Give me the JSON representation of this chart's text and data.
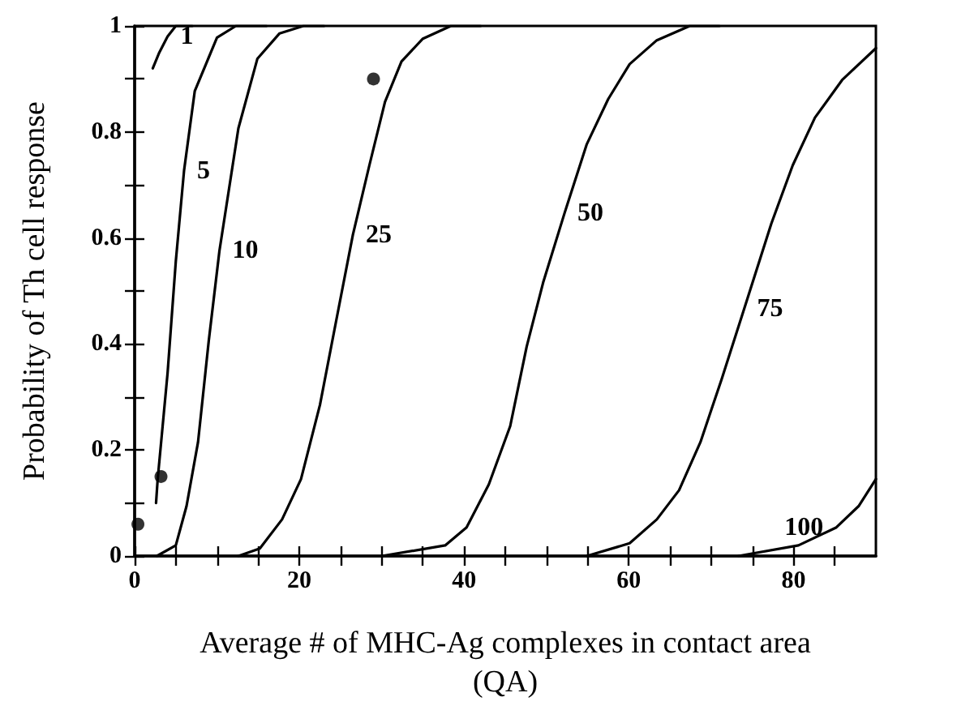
{
  "chart_data": {
    "type": "line",
    "xlabel": "Average # of MHC-Ag complexes in contact area\n(QA)",
    "ylabel": "Probability of Th cell response",
    "xlim": [
      0,
      90
    ],
    "xticks": [
      0,
      {
        "value": 5,
        "label": null
      },
      {
        "value": 10,
        "label": null
      },
      {
        "value": 15,
        "label": null
      },
      20,
      {
        "value": 25,
        "label": null
      },
      {
        "value": 30,
        "label": null
      },
      {
        "value": 35,
        "label": null
      },
      40,
      {
        "value": 45,
        "label": null
      },
      {
        "value": 50,
        "label": null
      },
      {
        "value": 55,
        "label": null
      },
      60,
      {
        "value": 65,
        "label": null
      },
      {
        "value": 70,
        "label": null
      },
      {
        "value": 75,
        "label": null
      },
      80,
      {
        "value": 85,
        "label": null
      }
    ],
    "ylim": [
      0,
      1
    ],
    "yticks": [
      0,
      {
        "value": 0.1,
        "label": null
      },
      0.2,
      {
        "value": 0.3,
        "label": null
      },
      0.4,
      {
        "value": 0.5,
        "label": null
      },
      0.6,
      {
        "value": 0.7,
        "label": null
      },
      0.8,
      {
        "value": 0.9,
        "label": null
      },
      1
    ],
    "grid": false,
    "marker": "none",
    "line_style": "solid",
    "series": [
      {
        "name": "1",
        "color": "#000000",
        "x": [
          2.2,
          3,
          4,
          5,
          7
        ],
        "values": [
          0.92,
          0.95,
          0.98,
          1,
          1
        ]
      },
      {
        "name": "5",
        "color": "#000000",
        "x": [
          2.6,
          2.8,
          4.0,
          5.0,
          6.0,
          7.3,
          10,
          12.3,
          16
        ],
        "values": [
          0.1,
          0.145,
          0.345,
          0.556,
          0.727,
          0.877,
          0.978,
          1,
          1
        ]
      },
      {
        "name": "10",
        "color": "#000000",
        "x": [
          2.7,
          5,
          6.3,
          7.7,
          9,
          10.3,
          12.6,
          14.9,
          17.6,
          20.5,
          23
        ],
        "values": [
          0,
          0.02,
          0.094,
          0.215,
          0.406,
          0.576,
          0.807,
          0.938,
          0.986,
          1,
          1
        ]
      },
      {
        "name": "25",
        "color": "#000000",
        "x": [
          12.6,
          15.2,
          17.9,
          20.2,
          22.5,
          24.5,
          26.5,
          28.5,
          30.4,
          32.4,
          35,
          38.4,
          42
        ],
        "values": [
          0,
          0.014,
          0.069,
          0.145,
          0.285,
          0.446,
          0.606,
          0.737,
          0.857,
          0.933,
          0.976,
          1,
          1
        ]
      },
      {
        "name": "50",
        "color": "#000000",
        "x": [
          30,
          37.7,
          40.3,
          43,
          45.6,
          47.6,
          49.6,
          52.2,
          54.9,
          57.5,
          60.1,
          63.4,
          67.4,
          71
        ],
        "values": [
          0,
          0.02,
          0.054,
          0.135,
          0.245,
          0.395,
          0.516,
          0.647,
          0.777,
          0.862,
          0.928,
          0.973,
          1,
          1
        ]
      },
      {
        "name": "75",
        "color": "#000000",
        "x": [
          54.9,
          60.1,
          63.4,
          66.1,
          68.7,
          71.3,
          74,
          77.3,
          79.9,
          82.6,
          85.9,
          90
        ],
        "values": [
          0,
          0.024,
          0.069,
          0.124,
          0.215,
          0.335,
          0.466,
          0.627,
          0.737,
          0.827,
          0.898,
          0.958
        ]
      },
      {
        "name": "100",
        "color": "#000000",
        "x": [
          73.3,
          80.6,
          85.2,
          87.9,
          90
        ],
        "values": [
          0,
          0.02,
          0.054,
          0.094,
          0.145
        ]
      },
      {
        "type": "scatter",
        "marker": "circle",
        "color": "#000000",
        "x": [
          0.4,
          3.2,
          29
        ],
        "values": [
          0.06,
          0.15,
          0.9
        ]
      }
    ]
  }
}
